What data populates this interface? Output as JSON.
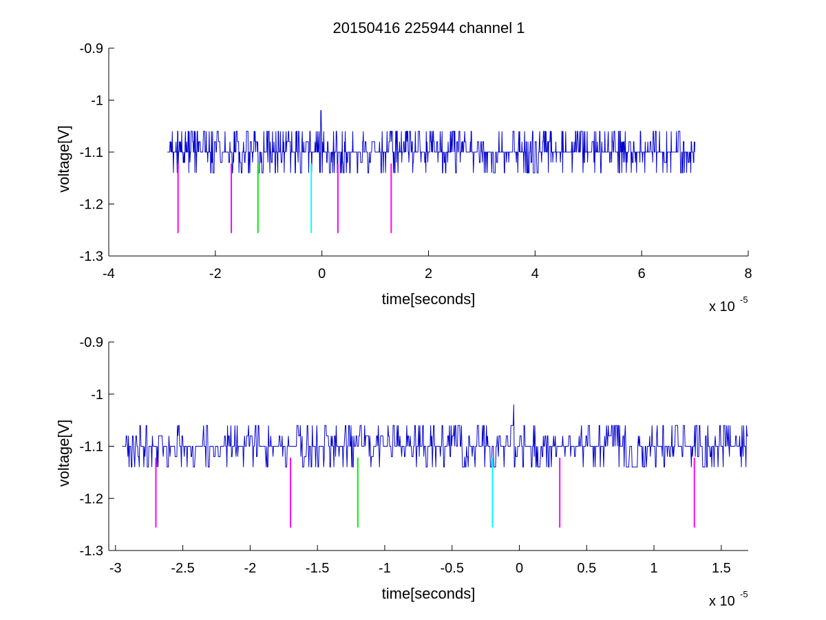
{
  "figure": {
    "title": "20150416 225944 channel 1"
  },
  "colors": {
    "signal": "#0000cc",
    "magenta": "#ff00ff",
    "green": "#00ee00",
    "cyan": "#00ffff",
    "axis": "#000000"
  },
  "chart_data": [
    {
      "type": "line",
      "title": "20150416 225944 channel 1",
      "xlabel": "time[seconds]",
      "ylabel": "voltage[V]",
      "x_multiplier": "x 10",
      "x_multiplier_exponent": "-5",
      "xlim": [
        -4,
        8
      ],
      "ylim": [
        -1.3,
        -0.9
      ],
      "y_reversed": true,
      "x_ticks": [
        -4,
        -2,
        0,
        2,
        4,
        6,
        8
      ],
      "x_tick_labels": [
        "-4",
        "-2",
        "0",
        "2",
        "4",
        "6",
        "8"
      ],
      "y_ticks": [
        -0.9,
        -1,
        -1.1,
        -1.2,
        -1.3
      ],
      "y_tick_labels": [
        "-0.9",
        "-1",
        "-1.1",
        "-1.2",
        "-1.3"
      ],
      "grid": false,
      "series": [
        {
          "baseline": -1.1,
          "x_range": [
            -2.9,
            7.0
          ],
          "levels": [
            -1.14,
            -1.12,
            -1.1,
            -1.08,
            -1.06
          ],
          "spike": {
            "x": -0.02,
            "y": -1.02
          },
          "color": "#0000cc"
        }
      ],
      "markers": [
        {
          "x": -2.7,
          "y_top": -1.122,
          "y_bottom": -1.256,
          "color": "#ff00ff"
        },
        {
          "x": -1.7,
          "y_top": -1.122,
          "y_bottom": -1.256,
          "color": "#ff00ff"
        },
        {
          "x": -1.2,
          "y_top": -1.122,
          "y_bottom": -1.256,
          "color": "#00ee00"
        },
        {
          "x": -0.2,
          "y_top": -1.122,
          "y_bottom": -1.256,
          "color": "#00ffff"
        },
        {
          "x": 0.3,
          "y_top": -1.122,
          "y_bottom": -1.256,
          "color": "#ff00ff"
        },
        {
          "x": 1.3,
          "y_top": -1.122,
          "y_bottom": -1.256,
          "color": "#ff00ff"
        }
      ]
    },
    {
      "type": "line",
      "xlabel": "time[seconds]",
      "ylabel": "voltage[V]",
      "x_multiplier": "x 10",
      "x_multiplier_exponent": "-5",
      "xlim": [
        -3.05,
        1.7
      ],
      "ylim": [
        -1.3,
        -0.9
      ],
      "y_reversed": true,
      "x_ticks": [
        -3,
        -2.5,
        -2,
        -1.5,
        -1,
        -0.5,
        0,
        0.5,
        1,
        1.5
      ],
      "x_tick_labels": [
        "-3",
        "-2.5",
        "-2",
        "-1.5",
        "-1",
        "-0.5",
        "0",
        "0.5",
        "1",
        "1.5"
      ],
      "y_ticks": [
        -0.9,
        -1,
        -1.1,
        -1.2,
        -1.3
      ],
      "y_tick_labels": [
        "-0.9",
        "-1",
        "-1.1",
        "-1.2",
        "-1.3"
      ],
      "grid": false,
      "series": [
        {
          "baseline": -1.1,
          "x_range": [
            -2.95,
            1.7
          ],
          "levels": [
            -1.14,
            -1.12,
            -1.1,
            -1.08,
            -1.06
          ],
          "spike": {
            "x": -0.04,
            "y": -1.02
          },
          "color": "#0000cc"
        }
      ],
      "markers": [
        {
          "x": -2.7,
          "y_top": -1.122,
          "y_bottom": -1.256,
          "color": "#ff00ff"
        },
        {
          "x": -1.7,
          "y_top": -1.122,
          "y_bottom": -1.256,
          "color": "#ff00ff"
        },
        {
          "x": -1.2,
          "y_top": -1.122,
          "y_bottom": -1.256,
          "color": "#00ee00"
        },
        {
          "x": -0.2,
          "y_top": -1.122,
          "y_bottom": -1.256,
          "color": "#00ffff"
        },
        {
          "x": 0.3,
          "y_top": -1.122,
          "y_bottom": -1.256,
          "color": "#ff00ff"
        },
        {
          "x": 1.3,
          "y_top": -1.122,
          "y_bottom": -1.256,
          "color": "#ff00ff"
        }
      ]
    }
  ]
}
